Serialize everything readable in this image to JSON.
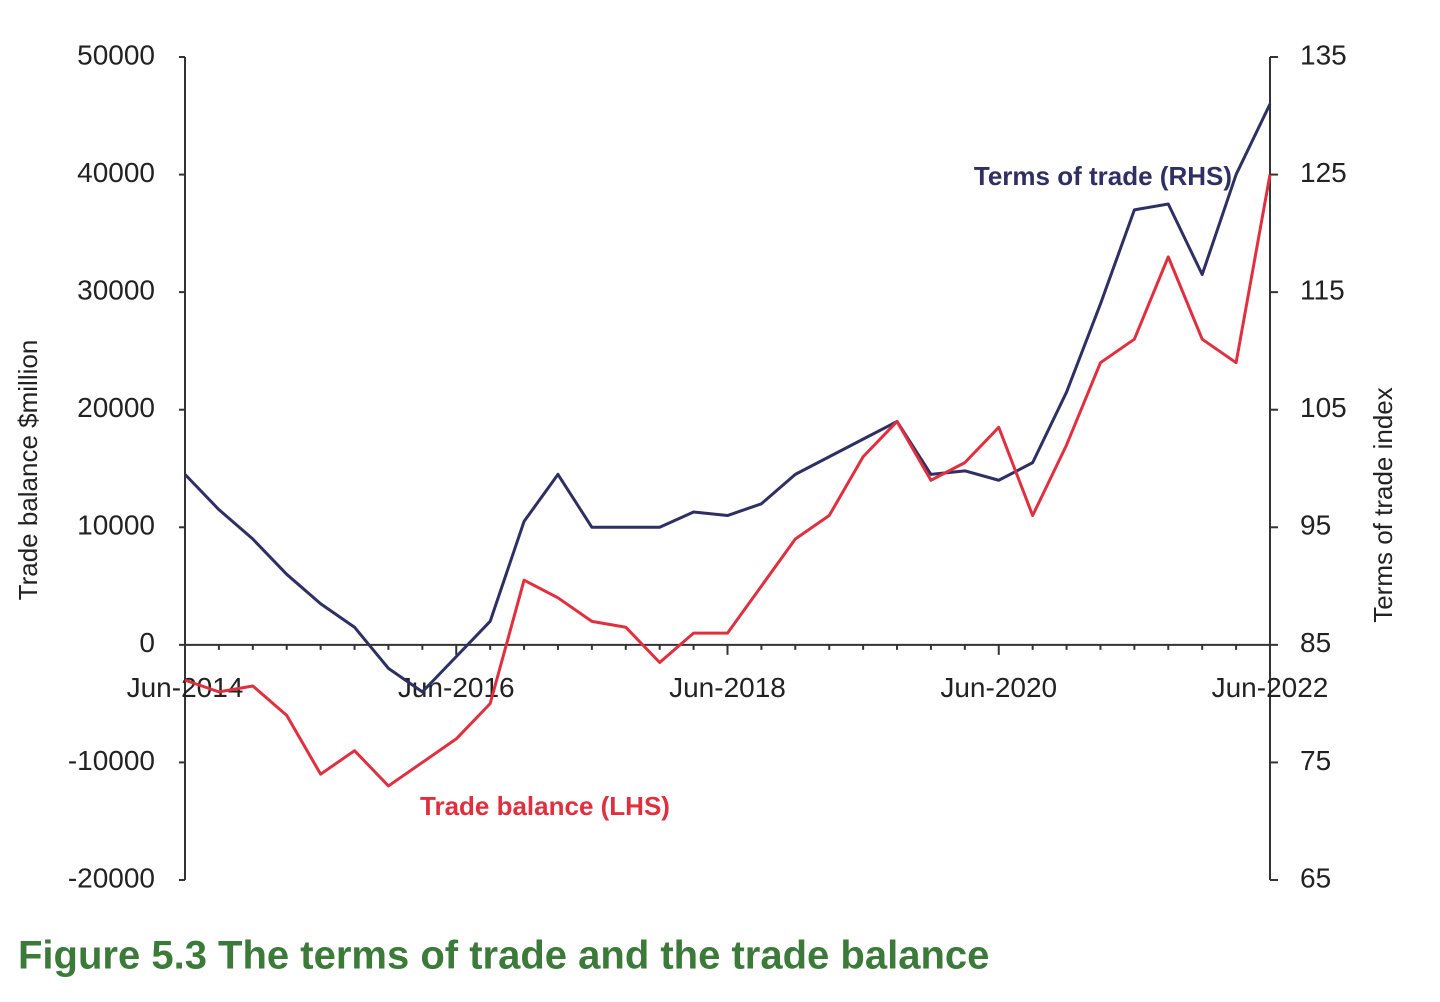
{
  "chart_data": {
    "type": "line",
    "title": "Figure 5.3   The terms of trade and the trade balance",
    "y_label": "Trade balance $million",
    "y2_label": "Terms of trade index",
    "categories": [
      "Jun-2014",
      null,
      null,
      null,
      null,
      null,
      null,
      null,
      "Jun-2016",
      null,
      null,
      null,
      null,
      null,
      null,
      null,
      "Jun-2018",
      null,
      null,
      null,
      null,
      null,
      null,
      null,
      "Jun-2020",
      null,
      null,
      null,
      null,
      null,
      null,
      null,
      "Jun-2022"
    ],
    "series": [
      {
        "name": "Terms of trade (RHS)",
        "color": "#2f2f63",
        "axis": "y2",
        "values": [
          99.5,
          96.5,
          94,
          91,
          88.5,
          86.5,
          83,
          81,
          84,
          87,
          95.5,
          99.5,
          95,
          95,
          95,
          96.3,
          96,
          97,
          99.5,
          101,
          102.5,
          104,
          99.5,
          99.8,
          99,
          100.5,
          106.5,
          114,
          122,
          122.5,
          116.5,
          125,
          131
        ]
      },
      {
        "name": "Trade balance (LHS)",
        "color": "#e0303f",
        "values": [
          -3000,
          -4000,
          -3500,
          -6000,
          -11000,
          -9000,
          -12000,
          -10000,
          -8000,
          -5000,
          5500,
          4000,
          2000,
          1500,
          -1500,
          1000,
          1000,
          5000,
          9000,
          11000,
          16000,
          19000,
          14000,
          15500,
          18500,
          11000,
          17000,
          24000,
          26000,
          33000,
          26000,
          24000,
          40000
        ]
      }
    ],
    "ylim": [
      -20000,
      50000
    ],
    "yticks": [
      -20000,
      -10000,
      0,
      10000,
      20000,
      30000,
      40000,
      50000
    ],
    "y2lim": [
      65,
      135
    ],
    "y2ticks": [
      65,
      75,
      85,
      95,
      105,
      115,
      125,
      135
    ]
  }
}
